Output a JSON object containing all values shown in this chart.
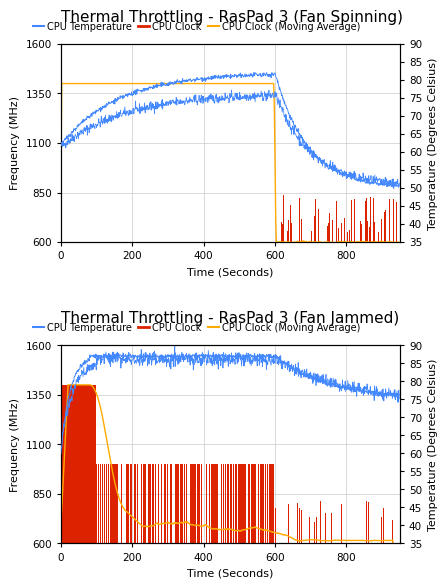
{
  "title1": "Thermal Throttling - RasPad 3 (Fan Spinning)",
  "title2": "Thermal Throttling - RasPad 3 (Fan Jammed)",
  "xlabel": "Time (Seconds)",
  "ylabel_left": "Frequency (MHz)",
  "ylabel_right": "Temperature (Degrees Celsius)",
  "ylim_freq": [
    600,
    1600
  ],
  "ylim_temp": [
    35,
    90
  ],
  "xlim": [
    0,
    950
  ],
  "yticks_freq": [
    600,
    850,
    1100,
    1350,
    1600
  ],
  "yticks_temp": [
    35,
    40,
    45,
    50,
    55,
    60,
    65,
    70,
    75,
    80,
    85,
    90
  ],
  "xticks": [
    0,
    200,
    400,
    600,
    800
  ],
  "color_cpu_clock": "#dd2200",
  "color_freq": "#4488ff",
  "color_mavg": "#ffaa00",
  "legend_labels": [
    "CPU Temperature",
    "CPU Clock",
    "CPU Clock (Moving Average)"
  ],
  "background": "#ffffff",
  "grid_color": "#cccccc",
  "title_fontsize": 11,
  "label_fontsize": 8,
  "tick_fontsize": 7.5,
  "legend_fontsize": 7
}
